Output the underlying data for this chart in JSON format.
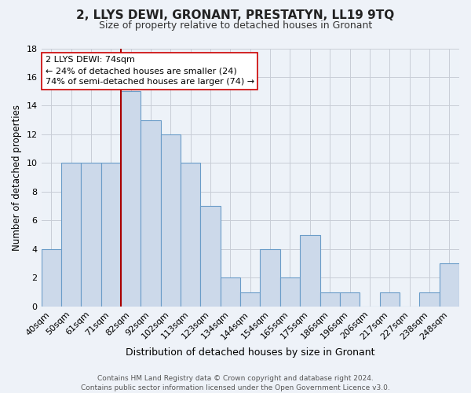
{
  "title": "2, LLYS DEWI, GRONANT, PRESTATYN, LL19 9TQ",
  "subtitle": "Size of property relative to detached houses in Gronant",
  "xlabel": "Distribution of detached houses by size in Gronant",
  "ylabel": "Number of detached properties",
  "categories": [
    "40sqm",
    "50sqm",
    "61sqm",
    "71sqm",
    "82sqm",
    "92sqm",
    "102sqm",
    "113sqm",
    "123sqm",
    "134sqm",
    "144sqm",
    "154sqm",
    "165sqm",
    "175sqm",
    "186sqm",
    "196sqm",
    "206sqm",
    "217sqm",
    "227sqm",
    "238sqm",
    "248sqm"
  ],
  "values": [
    4,
    10,
    10,
    10,
    15,
    13,
    12,
    10,
    7,
    2,
    1,
    4,
    2,
    5,
    1,
    1,
    0,
    1,
    0,
    1,
    3
  ],
  "bar_color": "#ccd9ea",
  "bar_edge_color": "#6a9cc8",
  "highlight_index": 3,
  "highlight_line_color": "#aa0000",
  "annotation_title": "2 LLYS DEWI: 74sqm",
  "annotation_line1": "← 24% of detached houses are smaller (24)",
  "annotation_line2": "74% of semi-detached houses are larger (74) →",
  "ylim": [
    0,
    18
  ],
  "yticks": [
    0,
    2,
    4,
    6,
    8,
    10,
    12,
    14,
    16,
    18
  ],
  "footer_line1": "Contains HM Land Registry data © Crown copyright and database right 2024.",
  "footer_line2": "Contains public sector information licensed under the Open Government Licence v3.0.",
  "background_color": "#eef2f8",
  "plot_bg_color": "#edf2f8",
  "grid_color": "#c8cdd6"
}
